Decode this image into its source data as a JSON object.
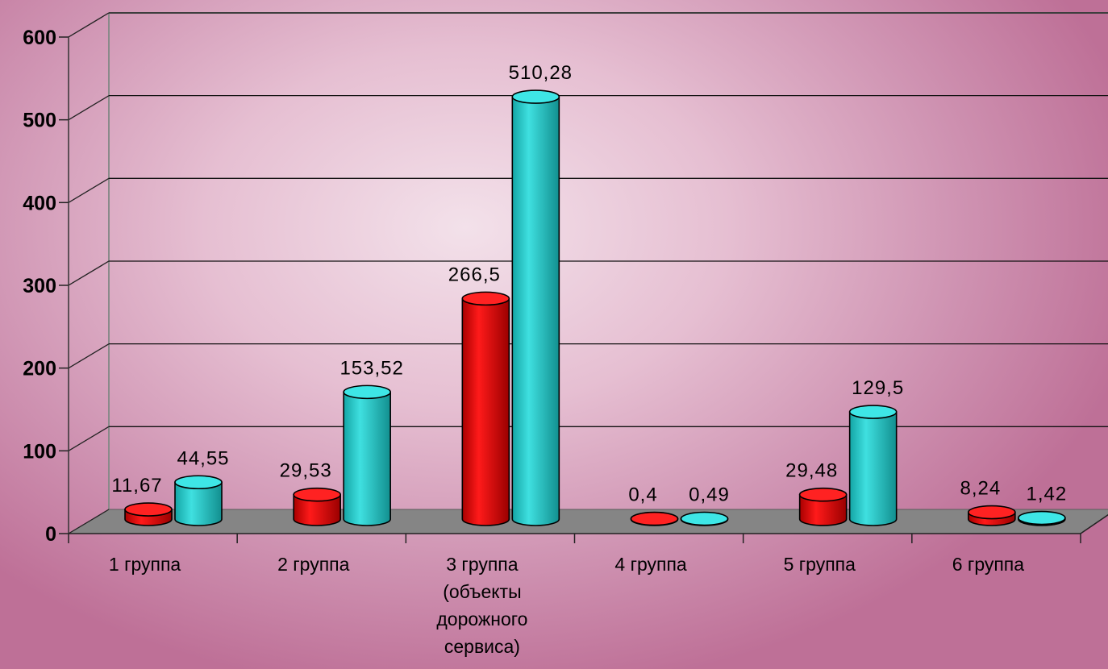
{
  "chart_data": {
    "type": "bar",
    "title": "",
    "xlabel": "",
    "ylabel": "",
    "ylim": [
      0,
      600
    ],
    "yticks": [
      "0",
      "100",
      "200",
      "300",
      "400",
      "500",
      "600"
    ],
    "categories": [
      [
        "1 группа"
      ],
      [
        "2 группа"
      ],
      [
        "3 группа",
        "(объекты",
        "дорожного",
        "сервиса)"
      ],
      [
        "4 группа"
      ],
      [
        "5 группа"
      ],
      [
        "6 группа"
      ]
    ],
    "series": [
      {
        "color": "#e00000",
        "values": [
          11.67,
          29.53,
          266.5,
          0.4,
          29.48,
          8.24
        ],
        "labels": [
          "11,67",
          "29,53",
          "266,5",
          "0,4",
          "29,48",
          "8,24"
        ]
      },
      {
        "color": "#22c6c6",
        "values": [
          44.55,
          153.52,
          510.28,
          0.49,
          129.5,
          1.42
        ],
        "labels": [
          "44,55",
          "153,52",
          "510,28",
          "0,49",
          "129,5",
          "1,42"
        ]
      }
    ],
    "grid": true,
    "legend": "none",
    "style": "3d-cylinder"
  }
}
